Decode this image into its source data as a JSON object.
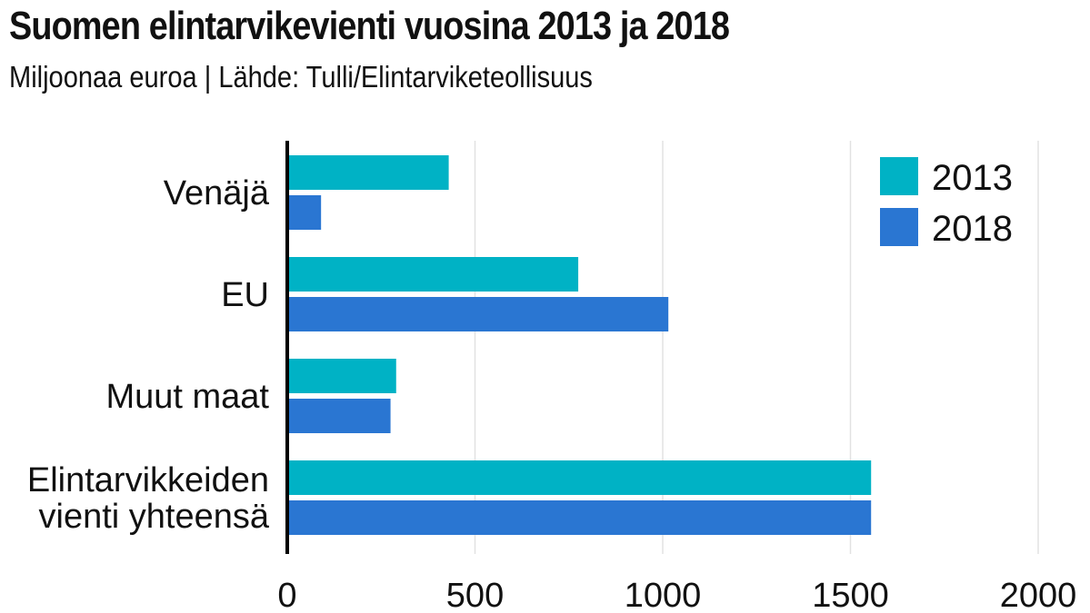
{
  "title": "Suomen elintarvikevienti vuosina 2013 ja 2018",
  "subtitle": "Miljoonaa euroa | Lähde: Tulli/Elintarviketeollisuus",
  "colors": {
    "2013": "#00b2c5",
    "2018": "#2a76d2",
    "grid": "#e2e2e2",
    "axis": "#000000"
  },
  "chart_data": {
    "type": "bar",
    "orientation": "horizontal",
    "title": "Suomen elintarvikevienti vuosina 2013 ja 2018",
    "subtitle": "Miljoonaa euroa | Lähde: Tulli/Elintarviketeollisuus",
    "categories": [
      [
        "Venäjä"
      ],
      [
        "EU"
      ],
      [
        "Muut maat"
      ],
      [
        "Elintarvikkeiden",
        "vienti yhteensä"
      ]
    ],
    "series": [
      {
        "name": "2013",
        "values": [
          430,
          775,
          290,
          1555
        ]
      },
      {
        "name": "2018",
        "values": [
          90,
          1015,
          275,
          1555
        ]
      }
    ],
    "xlim": [
      0,
      2000
    ],
    "xticks": [
      "0",
      "500",
      "1000",
      "1500",
      "2000"
    ],
    "xlabel": "",
    "ylabel": "",
    "grid": true,
    "legend": "top-right"
  }
}
